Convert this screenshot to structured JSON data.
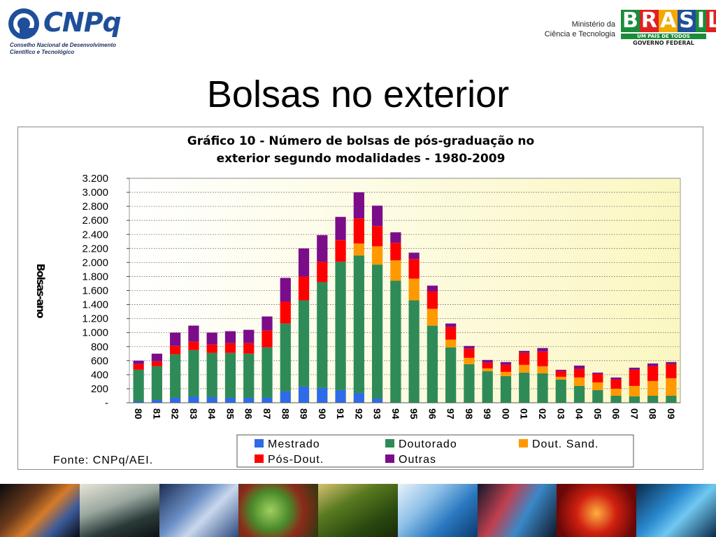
{
  "header": {
    "logo_text": "CNPq",
    "logo_subtitle_line1": "Conselho Nacional de Desenvolvimento",
    "logo_subtitle_line2": "Científico e Tecnológico",
    "ministry_line1": "Ministério da",
    "ministry_line2": "Ciência e Tecnologia",
    "brasil_word": "BRASIL",
    "brasil_tagline": "UM PAÍS DE TODOS",
    "brasil_gov": "GOVERNO FEDERAL"
  },
  "page": {
    "title": "Bolsas no exterior"
  },
  "chart_data": {
    "type": "bar",
    "stacked": true,
    "title_line1": "Gráfico 10 - Número de bolsas de pós-graduação no",
    "title_line2": "exterior segundo modalidades - 1980-2009",
    "ylabel": "Bolsas-ano",
    "xlabel": "",
    "ylim": [
      0,
      3200
    ],
    "yticks": [
      0,
      200,
      400,
      600,
      800,
      1000,
      1200,
      1400,
      1600,
      1800,
      2000,
      2200,
      2400,
      2600,
      2800,
      3000,
      3200
    ],
    "ytick_labels": [
      "-",
      "200",
      "400",
      "600",
      "800",
      "1.000",
      "1.200",
      "1.400",
      "1.600",
      "1.800",
      "2.000",
      "2.200",
      "2.400",
      "2.600",
      "2.800",
      "3.000",
      "3.200"
    ],
    "grid": true,
    "legend_position": "bottom",
    "source": "Fonte: CNPq/AEI.",
    "categories": [
      "80",
      "81",
      "82",
      "83",
      "84",
      "85",
      "86",
      "87",
      "88",
      "89",
      "90",
      "91",
      "92",
      "93",
      "94",
      "95",
      "96",
      "97",
      "98",
      "99",
      "00",
      "01",
      "02",
      "03",
      "04",
      "05",
      "06",
      "07",
      "08",
      "09"
    ],
    "series": [
      {
        "name": "Mestrado",
        "color": "#2f6be8",
        "values": [
          20,
          40,
          70,
          90,
          80,
          70,
          70,
          70,
          160,
          230,
          210,
          180,
          140,
          60,
          0,
          0,
          0,
          0,
          0,
          0,
          0,
          0,
          0,
          0,
          0,
          0,
          0,
          0,
          0,
          0
        ]
      },
      {
        "name": "Doutorado",
        "color": "#2e8b57",
        "values": [
          450,
          480,
          620,
          660,
          630,
          640,
          630,
          720,
          970,
          1230,
          1510,
          1830,
          1960,
          1910,
          1740,
          1460,
          1100,
          790,
          550,
          450,
          380,
          430,
          420,
          330,
          240,
          180,
          100,
          90,
          100,
          100
        ]
      },
      {
        "name": "Dout. Sand.",
        "color": "#ff9900",
        "values": [
          0,
          0,
          0,
          0,
          0,
          0,
          0,
          0,
          0,
          0,
          0,
          0,
          170,
          260,
          290,
          310,
          240,
          110,
          90,
          40,
          60,
          110,
          100,
          40,
          120,
          110,
          100,
          150,
          210,
          250
        ]
      },
      {
        "name": "Pós-Dout.",
        "color": "#ff0000",
        "values": [
          80,
          70,
          120,
          120,
          120,
          140,
          150,
          240,
          310,
          340,
          290,
          310,
          360,
          290,
          250,
          280,
          250,
          180,
          130,
          80,
          100,
          170,
          210,
          80,
          120,
          120,
          130,
          230,
          210,
          200
        ]
      },
      {
        "name": "Outras",
        "color": "#7b0d8a",
        "values": [
          50,
          110,
          190,
          230,
          170,
          170,
          190,
          200,
          340,
          400,
          380,
          330,
          370,
          290,
          150,
          90,
          80,
          50,
          40,
          40,
          40,
          30,
          50,
          20,
          50,
          20,
          30,
          30,
          40,
          30
        ]
      }
    ]
  },
  "strip": {
    "tiles": [
      "fiber-optics",
      "microscope",
      "solar-panels",
      "coffee-beans",
      "crop-plants",
      "syringe",
      "dna-helix",
      "lab-flask",
      "circuit-board"
    ]
  }
}
